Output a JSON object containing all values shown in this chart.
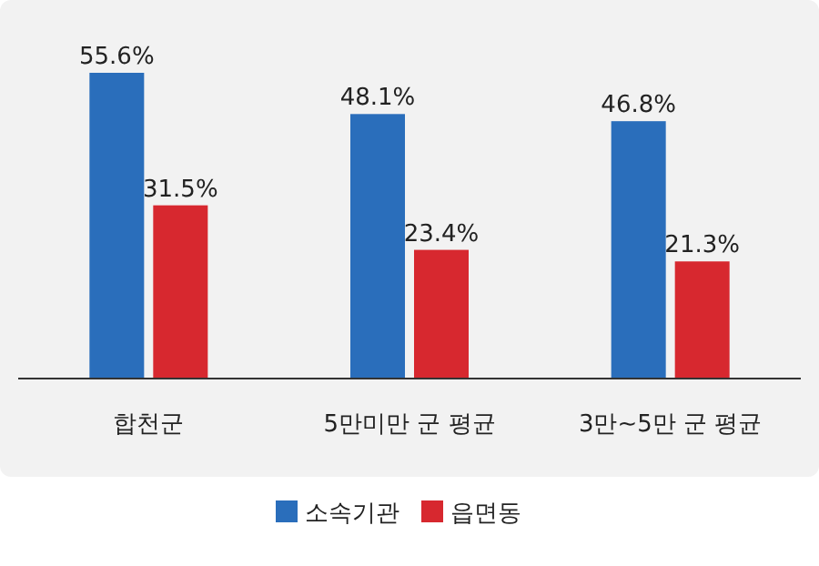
{
  "chart_data": {
    "type": "bar",
    "categories": [
      "합천군",
      "5만미만 군 평균",
      "3만~5만 군 평균"
    ],
    "series": [
      {
        "name": "소속기관",
        "color": "#2a6ebb",
        "values": [
          55.6,
          48.1,
          46.8
        ],
        "value_labels": [
          "55.6%",
          "48.1%",
          "46.8%"
        ]
      },
      {
        "name": "읍면동",
        "color": "#d7282f",
        "values": [
          31.5,
          23.4,
          21.3
        ],
        "value_labels": [
          "31.5%",
          "23.4%",
          "21.3%"
        ]
      }
    ],
    "legend": "bottom"
  }
}
